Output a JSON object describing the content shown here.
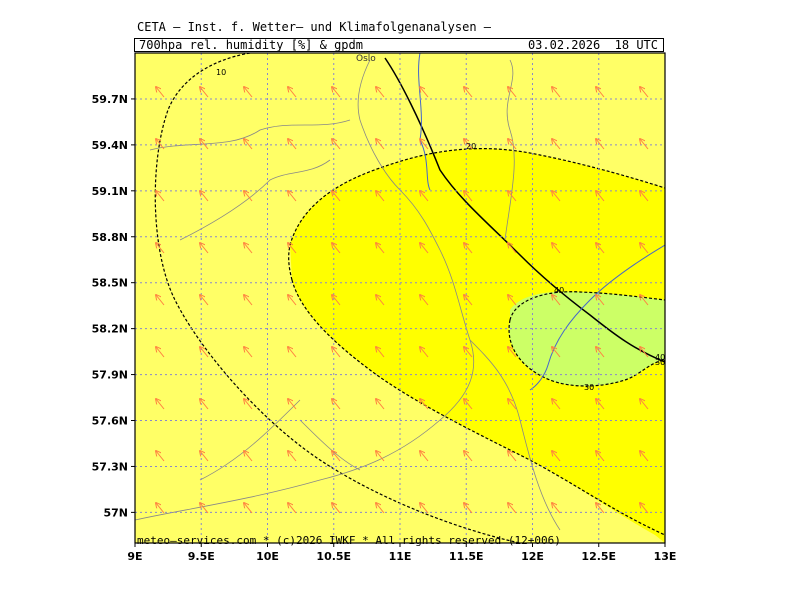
{
  "header": {
    "title": "CETA – Inst. f. Wetter– und Klimafolgenanalysen –",
    "parameter": "700hpa_rel._humidity_[%]_&_gpdm",
    "datetime": "03.02.2026  18 UTC"
  },
  "footer": {
    "copyright": "meteo–services.com * (c)2026 IWKF * All rights reserved (12+006)"
  },
  "map": {
    "lon_range": [
      9,
      13
    ],
    "lat_range": [
      56.8,
      60.0
    ],
    "lat_ticks": [
      {
        "value": 57.0,
        "label": "57N"
      },
      {
        "value": 57.3,
        "label": "57.3N"
      },
      {
        "value": 57.6,
        "label": "57.6N"
      },
      {
        "value": 57.9,
        "label": "57.9N"
      },
      {
        "value": 58.2,
        "label": "58.2N"
      },
      {
        "value": 58.5,
        "label": "58.5N"
      },
      {
        "value": 58.8,
        "label": "58.8N"
      },
      {
        "value": 59.1,
        "label": "59.1N"
      },
      {
        "value": 59.4,
        "label": "59.4N"
      },
      {
        "value": 59.7,
        "label": "59.7N"
      }
    ],
    "lon_ticks": [
      {
        "value": 9.0,
        "label": "9E"
      },
      {
        "value": 9.5,
        "label": "9.5E"
      },
      {
        "value": 10.0,
        "label": "10E"
      },
      {
        "value": 10.5,
        "label": "10.5E"
      },
      {
        "value": 11.0,
        "label": "11E"
      },
      {
        "value": 11.5,
        "label": "11.5E"
      },
      {
        "value": 12.0,
        "label": "12E"
      },
      {
        "value": 12.5,
        "label": "12.5E"
      },
      {
        "value": 13.0,
        "label": "13E"
      }
    ],
    "city_label": "Oslo",
    "contour_labels": [
      "10",
      "20",
      "30",
      "30",
      "40",
      "40"
    ],
    "fill_colors": {
      "lowest": "#ffff99",
      "band_10": "#ffff66",
      "band_20": "#ffff00",
      "band_30": "#ccff66",
      "arrow": "#ff8040",
      "grid": "#8888cc",
      "coast": "#888888",
      "river": "#4466cc"
    }
  }
}
